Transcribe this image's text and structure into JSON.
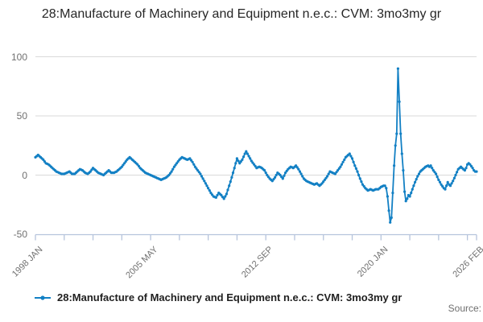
{
  "title": "28:Manufacture of Machinery and Equipment n.e.c.: CVM: 3mo3my gr",
  "legend": {
    "label": "28:Manufacture of Machinery and Equipment n.e.c.: CVM: 3mo3my gr"
  },
  "source_label": "Source:",
  "colors": {
    "line": "#1380c4",
    "axis": "#b6c4dc",
    "grid": "#d9d9d9",
    "tick_label": "#707070",
    "title_text": "#262626",
    "legend_text": "#1f1f1f",
    "source_text": "#6e6e6e"
  },
  "chart_data": {
    "type": "line",
    "title": "28:Manufacture of Machinery and Equipment n.e.c.: CVM: 3mo3my gr",
    "xlabel": "",
    "ylabel": "",
    "x_start": "1998 JAN",
    "x_end": "2026 FEB",
    "frequency": "monthly",
    "ylim": [
      -50,
      100
    ],
    "yticks": [
      100,
      50,
      0,
      -50
    ],
    "grid": "horizontal",
    "legend_position": "bottom-left",
    "x_tick_labels": [
      {
        "label": "1998 JAN",
        "month": 0
      },
      {
        "label": "2005 MAY",
        "month": 88
      },
      {
        "label": "2012 SEP",
        "month": 176
      },
      {
        "label": "2020 JAN",
        "month": 264
      },
      {
        "label": "2026 FEB",
        "month": 337
      }
    ],
    "minor_tick_interval_months": 22,
    "total_months": 337,
    "series": [
      {
        "name": "28:Manufacture of Machinery and Equipment n.e.c.: CVM: 3mo3my gr",
        "color": "#1380c4",
        "points_month_value": [
          [
            0,
            15
          ],
          [
            2,
            17
          ],
          [
            4,
            15
          ],
          [
            6,
            13
          ],
          [
            8,
            10
          ],
          [
            10,
            9
          ],
          [
            12,
            7
          ],
          [
            14,
            5
          ],
          [
            16,
            3
          ],
          [
            18,
            2
          ],
          [
            20,
            1
          ],
          [
            22,
            1
          ],
          [
            24,
            2
          ],
          [
            26,
            3
          ],
          [
            28,
            1
          ],
          [
            30,
            1
          ],
          [
            32,
            3
          ],
          [
            34,
            5
          ],
          [
            36,
            4
          ],
          [
            38,
            2
          ],
          [
            40,
            1
          ],
          [
            42,
            3
          ],
          [
            44,
            6
          ],
          [
            46,
            4
          ],
          [
            48,
            2
          ],
          [
            50,
            1
          ],
          [
            52,
            0
          ],
          [
            54,
            2
          ],
          [
            56,
            4
          ],
          [
            58,
            2
          ],
          [
            60,
            2
          ],
          [
            62,
            3
          ],
          [
            64,
            5
          ],
          [
            66,
            7
          ],
          [
            68,
            10
          ],
          [
            70,
            13
          ],
          [
            72,
            15
          ],
          [
            74,
            13
          ],
          [
            76,
            11
          ],
          [
            78,
            9
          ],
          [
            80,
            6
          ],
          [
            82,
            4
          ],
          [
            84,
            2
          ],
          [
            86,
            1
          ],
          [
            88,
            0
          ],
          [
            90,
            -1
          ],
          [
            92,
            -2
          ],
          [
            94,
            -3
          ],
          [
            96,
            -4
          ],
          [
            98,
            -3
          ],
          [
            100,
            -2
          ],
          [
            102,
            0
          ],
          [
            104,
            3
          ],
          [
            106,
            7
          ],
          [
            108,
            10
          ],
          [
            110,
            13
          ],
          [
            112,
            15
          ],
          [
            114,
            14
          ],
          [
            116,
            13
          ],
          [
            118,
            14
          ],
          [
            120,
            11
          ],
          [
            122,
            7
          ],
          [
            124,
            4
          ],
          [
            126,
            1
          ],
          [
            128,
            -3
          ],
          [
            130,
            -7
          ],
          [
            132,
            -11
          ],
          [
            134,
            -15
          ],
          [
            136,
            -18
          ],
          [
            138,
            -19
          ],
          [
            140,
            -15
          ],
          [
            142,
            -17
          ],
          [
            144,
            -20
          ],
          [
            146,
            -16
          ],
          [
            148,
            -9
          ],
          [
            150,
            -2
          ],
          [
            152,
            6
          ],
          [
            154,
            14
          ],
          [
            156,
            10
          ],
          [
            158,
            13
          ],
          [
            160,
            18
          ],
          [
            161,
            20
          ],
          [
            163,
            16
          ],
          [
            165,
            12
          ],
          [
            167,
            9
          ],
          [
            169,
            6
          ],
          [
            171,
            7
          ],
          [
            173,
            6
          ],
          [
            175,
            4
          ],
          [
            177,
            0
          ],
          [
            179,
            -3
          ],
          [
            181,
            -5
          ],
          [
            183,
            -2
          ],
          [
            185,
            2
          ],
          [
            187,
            0
          ],
          [
            189,
            -3
          ],
          [
            191,
            2
          ],
          [
            193,
            5
          ],
          [
            195,
            7
          ],
          [
            197,
            6
          ],
          [
            199,
            8
          ],
          [
            201,
            5
          ],
          [
            203,
            1
          ],
          [
            205,
            -3
          ],
          [
            207,
            -5
          ],
          [
            209,
            -6
          ],
          [
            211,
            -7
          ],
          [
            213,
            -8
          ],
          [
            215,
            -7
          ],
          [
            217,
            -9
          ],
          [
            219,
            -7
          ],
          [
            221,
            -4
          ],
          [
            223,
            -1
          ],
          [
            225,
            3
          ],
          [
            227,
            2
          ],
          [
            229,
            1
          ],
          [
            231,
            4
          ],
          [
            233,
            7
          ],
          [
            235,
            11
          ],
          [
            237,
            15
          ],
          [
            239,
            17
          ],
          [
            240,
            18
          ],
          [
            242,
            14
          ],
          [
            244,
            8
          ],
          [
            246,
            3
          ],
          [
            248,
            -3
          ],
          [
            250,
            -8
          ],
          [
            252,
            -11
          ],
          [
            254,
            -13
          ],
          [
            256,
            -12
          ],
          [
            258,
            -13
          ],
          [
            260,
            -12
          ],
          [
            262,
            -12
          ],
          [
            264,
            -10
          ],
          [
            266,
            -9
          ],
          [
            267,
            -9
          ],
          [
            268,
            -11
          ],
          [
            269,
            -18
          ],
          [
            270,
            -30
          ],
          [
            271,
            -40
          ],
          [
            272,
            -36
          ],
          [
            273,
            -15
          ],
          [
            274,
            8
          ],
          [
            275,
            25
          ],
          [
            276,
            35
          ],
          [
            277,
            90
          ],
          [
            278,
            62
          ],
          [
            279,
            35
          ],
          [
            280,
            18
          ],
          [
            281,
            4
          ],
          [
            282,
            -14
          ],
          [
            283,
            -22
          ],
          [
            284,
            -20
          ],
          [
            285,
            -17
          ],
          [
            286,
            -18
          ],
          [
            287,
            -15
          ],
          [
            288,
            -12
          ],
          [
            290,
            -6
          ],
          [
            292,
            -1
          ],
          [
            294,
            3
          ],
          [
            296,
            5
          ],
          [
            298,
            7
          ],
          [
            300,
            8
          ],
          [
            301,
            7
          ],
          [
            302,
            8
          ],
          [
            304,
            4
          ],
          [
            306,
            1
          ],
          [
            308,
            -4
          ],
          [
            310,
            -8
          ],
          [
            312,
            -11
          ],
          [
            313,
            -12
          ],
          [
            314,
            -9
          ],
          [
            315,
            -6
          ],
          [
            316,
            -8
          ],
          [
            317,
            -9
          ],
          [
            319,
            -5
          ],
          [
            321,
            0
          ],
          [
            323,
            5
          ],
          [
            325,
            7
          ],
          [
            327,
            5
          ],
          [
            328,
            4
          ],
          [
            329,
            6
          ],
          [
            330,
            9
          ],
          [
            331,
            10
          ],
          [
            332,
            9
          ],
          [
            334,
            6
          ],
          [
            335,
            4
          ],
          [
            336,
            3
          ],
          [
            337,
            3
          ]
        ]
      }
    ]
  }
}
